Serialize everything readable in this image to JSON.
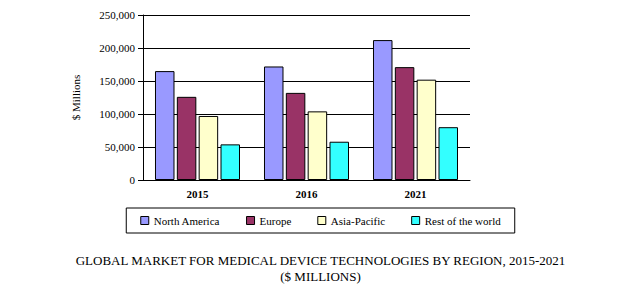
{
  "chart_data": {
    "type": "bar",
    "title": "GLOBAL MARKET FOR MEDICAL DEVICE TECHNOLOGIES BY REGION, 2015-2021",
    "subtitle": "($ MILLIONS)",
    "y_label": "$ Millions",
    "categories": [
      "2015",
      "2016",
      "2021"
    ],
    "series": [
      {
        "name": "North America",
        "color": "#9999ff",
        "values": [
          165000,
          172000,
          212000
        ]
      },
      {
        "name": "Europe",
        "color": "#993366",
        "values": [
          126000,
          132000,
          171000
        ]
      },
      {
        "name": "Asia-Pacific",
        "color": "#ffffcc",
        "values": [
          97000,
          104000,
          152000
        ]
      },
      {
        "name": "Rest of the world",
        "color": "#33ffff",
        "values": [
          54000,
          58000,
          80000
        ]
      }
    ],
    "ylim": [
      0,
      250000
    ],
    "yticks": [
      0,
      {
        "value": 50000,
        "label": "50,000"
      },
      {
        "value": 100000,
        "label": "100,000"
      },
      {
        "value": 150000,
        "label": "150,000"
      },
      {
        "value": 200000,
        "label": "200,000"
      },
      {
        "value": 250000,
        "label": "250,000"
      }
    ],
    "grid": true,
    "legend": "bottom"
  }
}
